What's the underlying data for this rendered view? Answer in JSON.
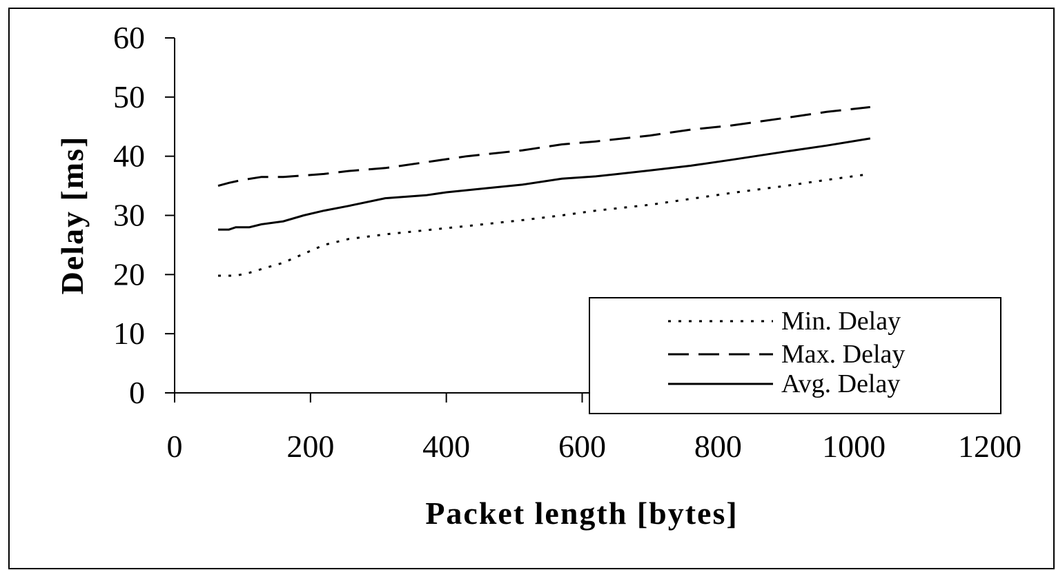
{
  "chart_data": {
    "type": "line",
    "title": "",
    "xlabel": "Packet length [bytes]",
    "ylabel": "Delay [ms]",
    "xlim": [
      0,
      1200
    ],
    "ylim": [
      0,
      60
    ],
    "xticks": [
      0,
      200,
      400,
      600,
      800,
      1000,
      1200
    ],
    "yticks": [
      0,
      10,
      20,
      30,
      40,
      50,
      60
    ],
    "grid": false,
    "legend_position": "bottom-right",
    "series": [
      {
        "name": "Min. Delay",
        "style": "dotted",
        "x": [
          64,
          90,
          110,
          130,
          160,
          190,
          220,
          256,
          310,
          370,
          430,
          512,
          570,
          620,
          700,
          760,
          820,
          900,
          960,
          1024
        ],
        "y": [
          19.8,
          19.8,
          20.3,
          21.0,
          22.0,
          23.5,
          25.0,
          26.0,
          26.8,
          27.5,
          28.2,
          29.2,
          30.0,
          30.8,
          31.8,
          32.8,
          33.8,
          35.0,
          36.0,
          37.0
        ]
      },
      {
        "name": "Max. Delay",
        "style": "dashed",
        "x": [
          64,
          80,
          100,
          128,
          160,
          220,
          256,
          310,
          370,
          430,
          512,
          570,
          620,
          700,
          760,
          820,
          900,
          960,
          1024
        ],
        "y": [
          35.0,
          35.5,
          36.0,
          36.5,
          36.5,
          37.0,
          37.5,
          38.0,
          39.0,
          40.0,
          41.0,
          42.0,
          42.5,
          43.5,
          44.5,
          45.2,
          46.5,
          47.5,
          48.3
        ]
      },
      {
        "name": "Avg. Delay",
        "style": "solid",
        "x": [
          64,
          80,
          90,
          110,
          128,
          160,
          190,
          220,
          256,
          310,
          370,
          400,
          460,
          512,
          570,
          620,
          700,
          760,
          820,
          900,
          960,
          1024
        ],
        "y": [
          27.6,
          27.6,
          28.0,
          28.0,
          28.5,
          29.0,
          30.0,
          30.8,
          31.6,
          32.9,
          33.4,
          33.9,
          34.6,
          35.2,
          36.2,
          36.6,
          37.6,
          38.4,
          39.4,
          40.8,
          41.8,
          43.0
        ]
      }
    ]
  }
}
